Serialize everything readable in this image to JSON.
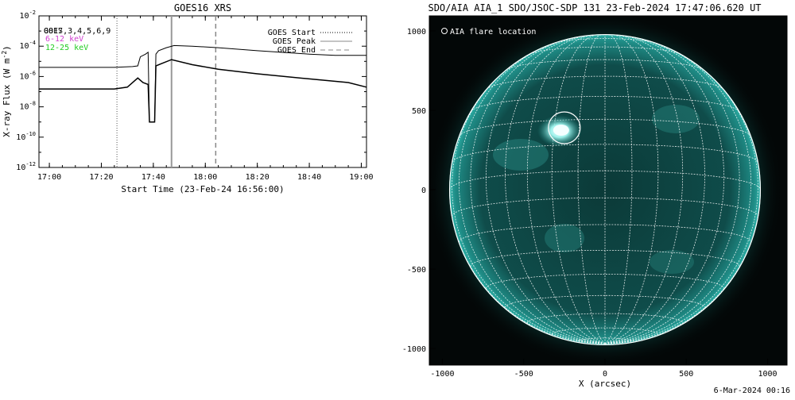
{
  "goes": {
    "title": "GOES16 XRS",
    "ylabel": "X-ray Flux (W m",
    "ylabel_sup": "-2",
    "ylabel_end": ")",
    "xlabel": "Start Time (23-Feb-24 16:56:00)",
    "channel_label": "0817,3,4,5,6,9",
    "channel_overlap": "GOES",
    "band_low": "6-12 keV",
    "band_high": "12-25 keV",
    "legend": {
      "start": "GOES Start",
      "peak": "GOES Peak",
      "end": "GOES End"
    },
    "colors": {
      "band_low": "#d040d0",
      "band_high": "#22cc22"
    }
  },
  "chart_data": [
    {
      "type": "line",
      "title": "GOES16 XRS",
      "xlabel": "Start Time (23-Feb-24 16:56:00)",
      "ylabel": "X-ray Flux (W m^-2)",
      "yscale": "log",
      "ylim": [
        1e-12,
        0.01
      ],
      "xlim": [
        "16:56",
        "19:02"
      ],
      "x_ticks": [
        "17:00",
        "17:20",
        "17:40",
        "18:00",
        "18:20",
        "18:40",
        "19:00"
      ],
      "y_ticks": [
        "10^-12",
        "10^-10",
        "10^-8",
        "10^-6",
        "10^-4",
        "10^-2"
      ],
      "grid": false,
      "vlines": {
        "GOES Start": "17:26",
        "GOES Peak": "17:47",
        "GOES End": "18:04"
      },
      "series": [
        {
          "name": "6-12 keV",
          "points": [
            [
              "16:56",
              4e-06
            ],
            [
              "17:10",
              4e-06
            ],
            [
              "17:25",
              4e-06
            ],
            [
              "17:32",
              4.5e-06
            ],
            [
              "17:34",
              5e-06
            ],
            [
              "17:35",
              2e-05
            ],
            [
              "17:37",
              3e-05
            ],
            [
              "17:38",
              4e-05
            ],
            [
              "17:38.5",
              1e-09
            ],
            [
              "17:40.5",
              1e-09
            ],
            [
              "17:41",
              3e-05
            ],
            [
              "17:42",
              5e-05
            ],
            [
              "17:45",
              8e-05
            ],
            [
              "17:48",
              0.00011
            ],
            [
              "17:55",
              0.0001
            ],
            [
              "18:05",
              8e-05
            ],
            [
              "18:20",
              5e-05
            ],
            [
              "18:40",
              3e-05
            ],
            [
              "18:50",
              2.5e-05
            ],
            [
              "19:02",
              2.5e-05
            ]
          ]
        },
        {
          "name": "12-25 keV",
          "points": [
            [
              "16:56",
              1.5e-07
            ],
            [
              "17:10",
              1.5e-07
            ],
            [
              "17:25",
              1.5e-07
            ],
            [
              "17:30",
              2e-07
            ],
            [
              "17:34",
              8e-07
            ],
            [
              "17:36",
              4e-07
            ],
            [
              "17:38",
              3e-07
            ],
            [
              "17:38.5",
              1e-09
            ],
            [
              "17:40.5",
              1e-09
            ],
            [
              "17:41",
              5e-06
            ],
            [
              "17:43",
              7e-06
            ],
            [
              "17:47",
              1.3e-05
            ],
            [
              "17:55",
              6e-06
            ],
            [
              "18:05",
              3e-06
            ],
            [
              "18:20",
              1.5e-06
            ],
            [
              "18:40",
              7e-07
            ],
            [
              "18:55",
              4e-07
            ],
            [
              "19:02",
              2e-07
            ]
          ]
        }
      ]
    },
    {
      "type": "scatter",
      "title": "SDO/AIA AIA_1 SDO/JSOC-SDP 131 23-Feb-2024 17:47:06.620 UT",
      "xlabel": "X (arcsec)",
      "ylabel": "",
      "xlim": [
        -1100,
        1100
      ],
      "ylim": [
        -1100,
        1100
      ],
      "x_ticks": [
        "-1000",
        "-500",
        "0",
        "500",
        "1000"
      ],
      "y_ticks": [
        "-1000",
        "-500",
        "0",
        "500",
        "1000"
      ],
      "solar_radius_arcsec": 970,
      "annotations": [
        {
          "label": "AIA flare location",
          "x": -250,
          "y": 390
        }
      ]
    }
  ],
  "aia": {
    "title": "SDO/AIA AIA_1 SDO/JSOC-SDP 131 23-Feb-2024 17:47:06.620 UT",
    "xlabel": "X (arcsec)",
    "legend_label": "AIA flare location",
    "colors": {
      "disk": "#0f4a48",
      "grid": "#ffffff",
      "flare": "#c8ffff"
    }
  },
  "footer": {
    "date_stamp": "6-Mar-2024 00:16"
  }
}
